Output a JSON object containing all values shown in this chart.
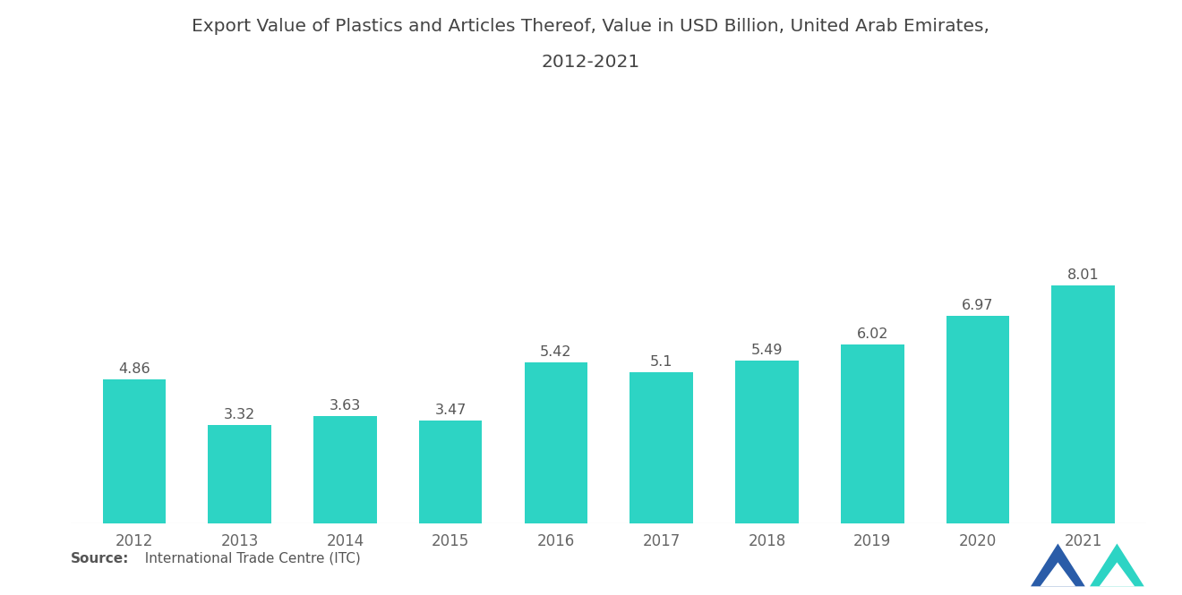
{
  "title_line1": "Export Value of Plastics and Articles Thereof, Value in USD Billion, United Arab Emirates,",
  "title_line2": "2012-2021",
  "years": [
    "2012",
    "2013",
    "2014",
    "2015",
    "2016",
    "2017",
    "2018",
    "2019",
    "2020",
    "2021"
  ],
  "values": [
    4.86,
    3.32,
    3.63,
    3.47,
    5.42,
    5.1,
    5.49,
    6.02,
    6.97,
    8.01
  ],
  "bar_color": "#2DD4C4",
  "background_color": "#ffffff",
  "title_fontsize": 14.5,
  "label_fontsize": 11.5,
  "tick_fontsize": 12,
  "source_bold": "Source:",
  "source_normal": "  International Trade Centre (ITC)",
  "source_fontsize": 11,
  "ylim": [
    0,
    10.0
  ],
  "logo_color_left": "#2A5CA8",
  "logo_color_right": "#2DD4C4"
}
